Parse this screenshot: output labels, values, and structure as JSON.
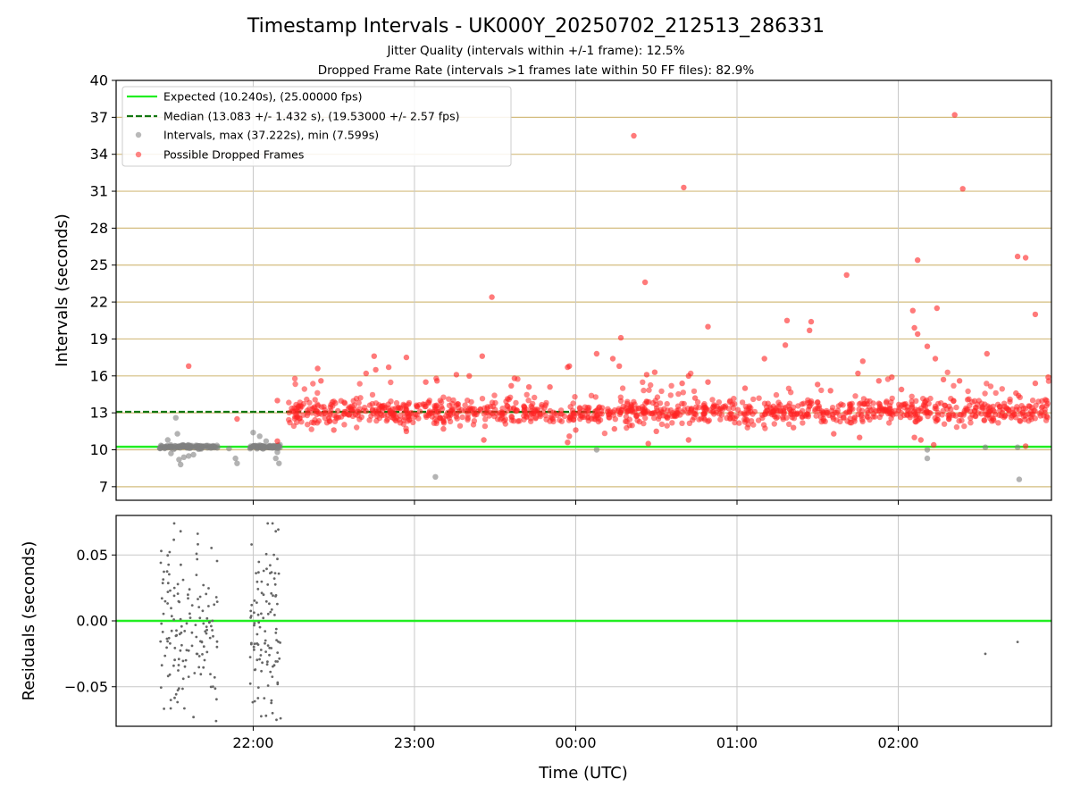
{
  "title": "Timestamp Intervals - UK000Y_20250702_212513_286331",
  "subtitle_1": "Jitter Quality (intervals within +/-1 frame): 12.5%",
  "subtitle_2": "Dropped Frame Rate (intervals >1 frames late within 50 FF files): 82.9%",
  "colors": {
    "expected": "#22ee22",
    "median": "#117711",
    "intervals": "#808080",
    "dropped": "#ff2222",
    "hgrid": "#d4bd7f",
    "vgrid": "#c8c8c8"
  },
  "chart_data": [
    {
      "type": "scatter",
      "ylabel": "Intervals (seconds)",
      "xlabel": "",
      "x_unit": "hours since 00:00 UTC",
      "xlim": [
        -2.85,
        2.95
      ],
      "ylim": [
        5.9,
        40
      ],
      "yticks": [
        7,
        10,
        13,
        16,
        19,
        22,
        25,
        28,
        31,
        34,
        37,
        40
      ],
      "xticks": [
        -2,
        -1,
        0,
        1,
        2
      ],
      "legend_position": "top-left",
      "expected_line": {
        "value": 10.24,
        "label": "Expected (10.240s), (25.00000 fps)"
      },
      "median_line": {
        "value": 13.083,
        "x_end": 0.12,
        "label": "Median (13.083 +/- 1.432 s), (19.53000 +/- 2.57 fps)"
      },
      "series": [
        {
          "name": "Intervals, max (37.222s), min (7.599s)",
          "color": "gray",
          "groups": [
            {
              "x_start": -2.58,
              "x_end": -2.22,
              "center": 10.24,
              "spread": 0.15,
              "count": 120
            },
            {
              "x_start": -2.02,
              "x_end": -1.83,
              "center": 10.24,
              "spread": 0.15,
              "count": 85
            }
          ],
          "points": [
            [
              -2.53,
              10.8
            ],
            [
              -2.51,
              9.7
            ],
            [
              -2.48,
              12.6
            ],
            [
              -2.47,
              11.3
            ],
            [
              -2.46,
              9.2
            ],
            [
              -2.45,
              8.8
            ],
            [
              -2.43,
              9.4
            ],
            [
              -2.4,
              9.5
            ],
            [
              -2.37,
              9.6
            ],
            [
              -2.15,
              10.1
            ],
            [
              -2.11,
              9.3
            ],
            [
              -2.1,
              8.9
            ],
            [
              -2,
              11.4
            ],
            [
              -1.96,
              11.1
            ],
            [
              -1.92,
              10.7
            ],
            [
              -1.86,
              9.3
            ],
            [
              -1.84,
              8.9
            ],
            [
              -1.85,
              9.8
            ],
            [
              -0.87,
              7.8
            ],
            [
              0.13,
              10
            ],
            [
              2.18,
              10
            ],
            [
              2.18,
              9.3
            ],
            [
              2.54,
              10.2
            ],
            [
              2.74,
              10.2
            ],
            [
              2.75,
              7.6
            ]
          ]
        },
        {
          "name": "Possible Dropped Frames",
          "color": "red",
          "band": {
            "x_start": -1.8,
            "x_end": 2.95,
            "center": 13.1,
            "spread": 0.9,
            "count": 1150
          },
          "outliers": [
            [
              -2.4,
              16.8
            ],
            [
              -2.1,
              12.5
            ],
            [
              -1.85,
              14
            ],
            [
              -1.85,
              10.7
            ],
            [
              -1.6,
              16.6
            ],
            [
              -1.58,
              15.6
            ],
            [
              -1.5,
              11.6
            ],
            [
              -1.3,
              16.2
            ],
            [
              -1.25,
              17.6
            ],
            [
              -1.24,
              16.5
            ],
            [
              -1.16,
              16.7
            ],
            [
              -1.05,
              17.5
            ],
            [
              -1.05,
              11.5
            ],
            [
              -0.93,
              15.5
            ],
            [
              -0.86,
              15.6
            ],
            [
              -0.82,
              11.7
            ],
            [
              -0.74,
              16.1
            ],
            [
              -0.66,
              16.0
            ],
            [
              -0.58,
              17.6
            ],
            [
              -0.52,
              22.4
            ],
            [
              -0.57,
              10.8
            ],
            [
              -0.4,
              15.2
            ],
            [
              -0.38,
              15.8
            ],
            [
              -0.29,
              15.1
            ],
            [
              -0.16,
              15.1
            ],
            [
              -0.05,
              16.7
            ],
            [
              -0.04,
              16.8
            ],
            [
              -0.05,
              10.6
            ],
            [
              -0.04,
              11.1
            ],
            [
              0,
              11.6
            ],
            [
              0.13,
              17.8
            ],
            [
              0.23,
              17.4
            ],
            [
              0.27,
              16.8
            ],
            [
              0.28,
              19.1
            ],
            [
              0.24,
              11.7
            ],
            [
              0.36,
              35.5
            ],
            [
              0.43,
              23.6
            ],
            [
              0.44,
              16.1
            ],
            [
              0.49,
              16.3
            ],
            [
              0.45,
              10.5
            ],
            [
              0.5,
              11.5
            ],
            [
              0.67,
              31.3
            ],
            [
              0.66,
              15.4
            ],
            [
              0.7,
              16.0
            ],
            [
              0.7,
              10.8
            ],
            [
              0.74,
              14.2
            ],
            [
              0.82,
              20.0
            ],
            [
              0.82,
              15.5
            ],
            [
              1.05,
              15.0
            ],
            [
              1.17,
              17.4
            ],
            [
              1.31,
              20.5
            ],
            [
              1.3,
              18.5
            ],
            [
              1.35,
              11.8
            ],
            [
              1.45,
              19.7
            ],
            [
              1.46,
              20.4
            ],
            [
              1.5,
              15.3
            ],
            [
              1.58,
              14.8
            ],
            [
              1.6,
              11.3
            ],
            [
              1.68,
              24.2
            ],
            [
              1.75,
              16.2
            ],
            [
              1.78,
              17.2
            ],
            [
              1.76,
              11.0
            ],
            [
              1.88,
              15.6
            ],
            [
              1.96,
              15.9
            ],
            [
              2.02,
              14.9
            ],
            [
              2.09,
              21.3
            ],
            [
              2.1,
              19.9
            ],
            [
              2.12,
              25.4
            ],
            [
              2.12,
              19.4
            ],
            [
              2.1,
              11.0
            ],
            [
              2.14,
              10.8
            ],
            [
              2.18,
              18.4
            ],
            [
              2.23,
              17.4
            ],
            [
              2.24,
              21.5
            ],
            [
              2.28,
              15.7
            ],
            [
              2.35,
              37.2
            ],
            [
              2.38,
              15.6
            ],
            [
              2.4,
              31.2
            ],
            [
              2.22,
              10.4
            ],
            [
              2.55,
              17.8
            ],
            [
              2.74,
              25.7
            ],
            [
              2.79,
              25.6
            ],
            [
              2.73,
              14.6
            ],
            [
              2.85,
              21.0
            ],
            [
              2.85,
              15.4
            ],
            [
              2.93,
              15.9
            ],
            [
              2.92,
              14.0
            ],
            [
              2.79,
              10.3
            ]
          ]
        }
      ]
    },
    {
      "type": "scatter",
      "ylabel": "Residuals (seconds)",
      "xlabel": "Time (UTC)",
      "x_unit": "hours since 00:00 UTC",
      "xlim": [
        -2.85,
        2.95
      ],
      "ylim": [
        -0.08,
        0.08
      ],
      "ytick_labels": [
        "0.05",
        "0.00",
        "−0.05"
      ],
      "yticks": [
        0.05,
        0,
        -0.05
      ],
      "xtick_labels": [
        "22:00",
        "23:00",
        "00:00",
        "01:00",
        "02:00"
      ],
      "xticks": [
        -2,
        -1,
        0,
        1,
        2
      ],
      "zero_line": 0,
      "series": [
        {
          "name": "",
          "color": "gray",
          "groups": [
            {
              "x_start": -2.58,
              "x_end": -2.22,
              "y_min": -0.078,
              "y_max": 0.075,
              "count": 140
            },
            {
              "x_start": -2.02,
              "x_end": -1.83,
              "y_min": -0.078,
              "y_max": 0.075,
              "count": 100
            }
          ],
          "points": [
            [
              -2.57,
              0.053
            ],
            [
              -2.49,
              0.074
            ],
            [
              -2.45,
              0.068
            ],
            [
              -2.37,
              -0.073
            ],
            [
              -2.23,
              -0.076
            ],
            [
              -1.99,
              -0.061
            ],
            [
              -1.91,
              0.074
            ],
            [
              -1.88,
              0.074
            ],
            [
              -1.86,
              0.068
            ],
            [
              -1.88,
              -0.07
            ],
            [
              -1.83,
              -0.074
            ],
            [
              -1.85,
              0.047
            ],
            [
              2.54,
              -0.025
            ],
            [
              2.74,
              -0.016
            ]
          ]
        }
      ]
    }
  ],
  "legend": {
    "expected": "Expected (10.240s), (25.00000 fps)",
    "median": "Median (13.083 +/- 1.432 s), (19.53000 +/- 2.57 fps)",
    "intervals": "Intervals, max (37.222s), min (7.599s)",
    "dropped": "Possible Dropped Frames"
  }
}
